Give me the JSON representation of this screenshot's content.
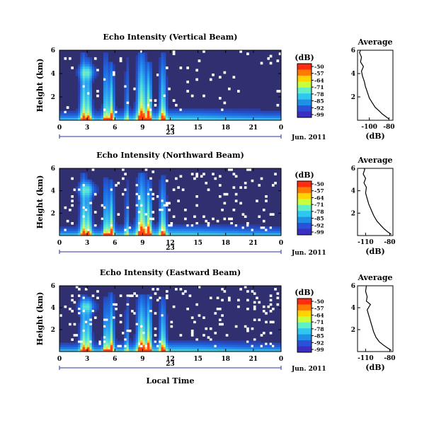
{
  "figure": {
    "xlabel": "Local Time",
    "date_label": "Jun. 2011",
    "day_label": "23",
    "colorbar_unit": "(dB)",
    "colorbar_ticks": [
      "-50",
      "-57",
      "-64",
      "-71",
      "-78",
      "-85",
      "-92",
      "-99"
    ],
    "colorbar_colors": [
      "#ff2a10",
      "#ff7a00",
      "#ffd400",
      "#c8ff3c",
      "#5ff0c8",
      "#2ec7f0",
      "#1f8fe8",
      "#2a52d8",
      "#3a2fc0"
    ],
    "background_color": "#303070",
    "average_title": "Average",
    "average_xlabel": "(dB)"
  },
  "chart_data": [
    {
      "type": "heatmap",
      "title": "Echo Intensity (Vertical Beam)",
      "ylabel": "Height (km)",
      "xlabel": "",
      "x_range": [
        0,
        24
      ],
      "x_ticks": [
        "0",
        "3",
        "6",
        "9",
        "12",
        "15",
        "18",
        "21",
        "0"
      ],
      "y_range": [
        0,
        6
      ],
      "y_ticks": [
        "2",
        "4",
        "6"
      ],
      "colorbar_range": [
        -99,
        -50
      ],
      "gap_fraction": 0.02,
      "average": {
        "title": "Average",
        "xlabel": "(dB)",
        "x_ticks": [
          "-100",
          "-80"
        ],
        "x_range": [
          -112,
          -76
        ],
        "y_ticks": [
          "2",
          "4",
          "6"
        ],
        "profile": [
          [
            -80,
            0.1
          ],
          [
            -83,
            0.3
          ],
          [
            -87,
            0.55
          ],
          [
            -90,
            0.8
          ],
          [
            -94,
            1.1
          ],
          [
            -97,
            1.5
          ],
          [
            -100,
            1.9
          ],
          [
            -102,
            2.4
          ],
          [
            -104,
            2.9
          ],
          [
            -105,
            3.3
          ],
          [
            -107,
            3.8
          ],
          [
            -108,
            4.2
          ],
          [
            -106,
            4.6
          ],
          [
            -109,
            5.0
          ],
          [
            -108,
            5.4
          ],
          [
            -110,
            5.8
          ],
          [
            -109,
            6.0
          ]
        ]
      }
    },
    {
      "type": "heatmap",
      "title": "Echo Intensity (Northward Beam)",
      "ylabel": "Height (km)",
      "xlabel": "",
      "x_range": [
        0,
        24
      ],
      "x_ticks": [
        "0",
        "3",
        "6",
        "9",
        "12",
        "15",
        "18",
        "21",
        "0"
      ],
      "y_range": [
        0,
        6
      ],
      "y_ticks": [
        "2",
        "4",
        "6"
      ],
      "colorbar_range": [
        -99,
        -50
      ],
      "gap_fraction": 0.05,
      "average": {
        "title": "Average",
        "xlabel": "(dB)",
        "x_ticks": [
          "-110",
          "-80"
        ],
        "x_range": [
          -120,
          -76
        ],
        "y_ticks": [
          "2",
          "4",
          "6"
        ],
        "profile": [
          [
            -78,
            0.1
          ],
          [
            -82,
            0.3
          ],
          [
            -87,
            0.6
          ],
          [
            -91,
            0.9
          ],
          [
            -96,
            1.3
          ],
          [
            -100,
            1.8
          ],
          [
            -103,
            2.3
          ],
          [
            -106,
            2.8
          ],
          [
            -108,
            3.3
          ],
          [
            -110,
            3.8
          ],
          [
            -109,
            4.3
          ],
          [
            -112,
            4.7
          ],
          [
            -110,
            5.1
          ],
          [
            -113,
            5.5
          ],
          [
            -111,
            5.9
          ],
          [
            -112,
            6.0
          ]
        ]
      }
    },
    {
      "type": "heatmap",
      "title": "Echo Intensity (Eastward Beam)",
      "ylabel": "Height (km)",
      "xlabel": "Local Time",
      "x_range": [
        0,
        24
      ],
      "x_ticks": [
        "0",
        "3",
        "6",
        "9",
        "12",
        "15",
        "18",
        "21",
        "0"
      ],
      "y_range": [
        0,
        6
      ],
      "y_ticks": [
        "2",
        "4",
        "6"
      ],
      "colorbar_range": [
        -99,
        -50
      ],
      "gap_fraction": 0.06,
      "average": {
        "title": "Average",
        "xlabel": "(dB)",
        "x_ticks": [
          "-110",
          "-80"
        ],
        "x_range": [
          -120,
          -76
        ],
        "y_ticks": [
          "2",
          "4",
          "6"
        ],
        "profile": [
          [
            -78,
            0.1
          ],
          [
            -83,
            0.35
          ],
          [
            -88,
            0.6
          ],
          [
            -93,
            0.9
          ],
          [
            -97,
            1.3
          ],
          [
            -100,
            1.8
          ],
          [
            -102,
            2.3
          ],
          [
            -104,
            2.8
          ],
          [
            -106,
            3.3
          ],
          [
            -108,
            3.8
          ],
          [
            -104,
            4.3
          ],
          [
            -109,
            4.6
          ],
          [
            -108,
            5.0
          ],
          [
            -110,
            5.5
          ],
          [
            -109,
            6.0
          ]
        ]
      }
    }
  ]
}
